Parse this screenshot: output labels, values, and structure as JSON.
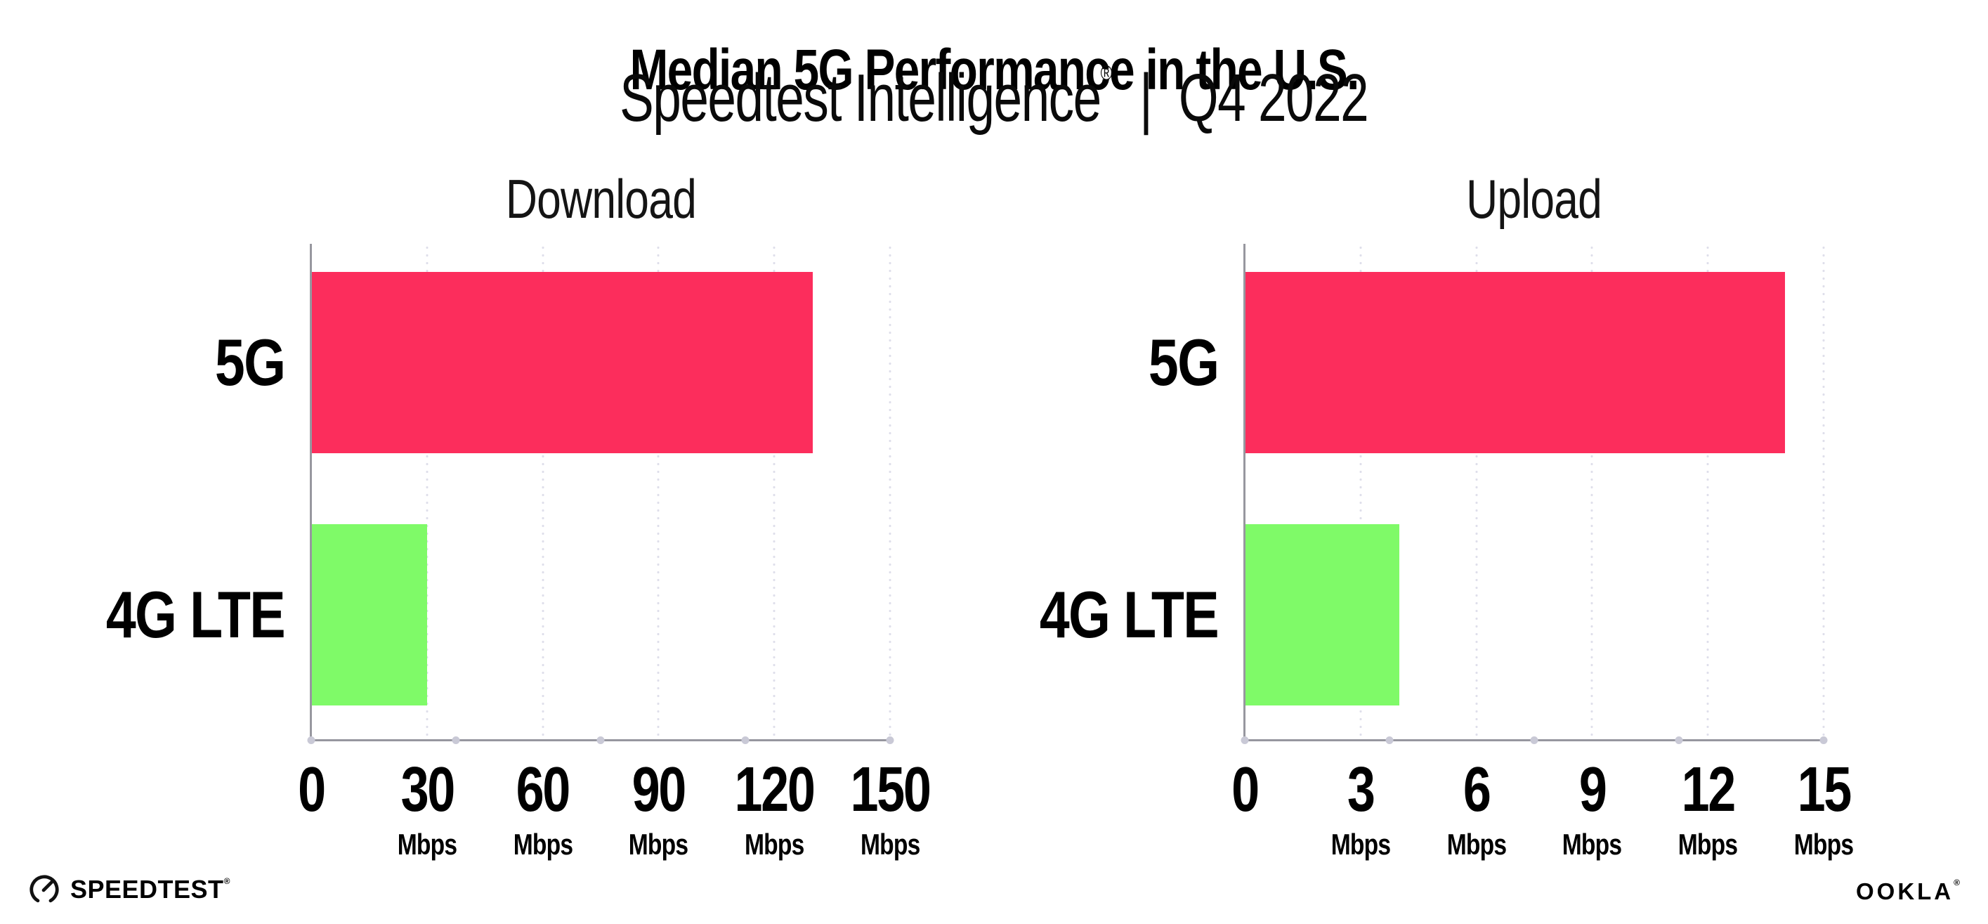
{
  "header": {
    "title": "Median 5G Performance in the U.S.",
    "subtitle_brand": "Speedtest Intelligence",
    "subtitle_reg": "®",
    "subtitle_divider": "|",
    "subtitle_period": "Q4 2022"
  },
  "footer": {
    "speedtest_wordmark": "SPEEDTEST",
    "speedtest_reg": "®",
    "ookla_wordmark": "OOKLA",
    "ookla_reg": "®"
  },
  "colors": {
    "bar_5g": "#fc2d5c",
    "bar_4g_lte": "#7ffa68",
    "axis_line": "#97979f",
    "axis_dot": "#c9c9d6",
    "grid_dot": "#dfdfeb",
    "text": "#000000"
  },
  "chart_data": [
    {
      "type": "bar",
      "orientation": "horizontal",
      "title": "Download",
      "categories": [
        "5G",
        "4G LTE"
      ],
      "values": [
        130,
        30
      ],
      "unit": "Mbps",
      "xlim": [
        0,
        150
      ],
      "ticks": [
        0,
        30,
        60,
        90,
        120,
        150
      ],
      "grid": "dotted-vertical",
      "bar_colors": [
        "#fc2d5c",
        "#7ffa68"
      ]
    },
    {
      "type": "bar",
      "orientation": "horizontal",
      "title": "Upload",
      "categories": [
        "5G",
        "4G LTE"
      ],
      "values": [
        14,
        4
      ],
      "unit": "Mbps",
      "xlim": [
        0,
        15
      ],
      "ticks": [
        0,
        3,
        6,
        9,
        12,
        15
      ],
      "grid": "dotted-vertical",
      "bar_colors": [
        "#fc2d5c",
        "#7ffa68"
      ]
    }
  ]
}
